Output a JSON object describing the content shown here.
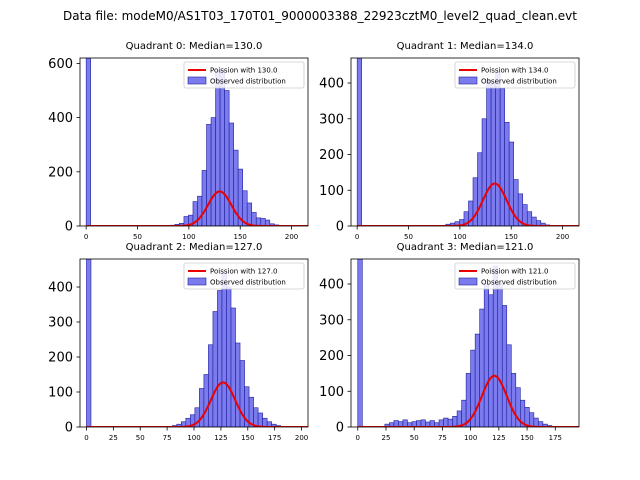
{
  "suptitle": "Data file: modeM0/AS1T03_170T01_9000003388_22923cztM0_level2_quad_clean.evt",
  "colors": {
    "hist_fill": "#7b7bed",
    "hist_edge": "#1f1f9e",
    "poisson": "#ee0000"
  },
  "chart_data": [
    {
      "type": "bar",
      "title": "Quadrant 0: Median=130.0",
      "legend": [
        "Poission with 130.0",
        "Observed distribution"
      ],
      "legend_position": "top-right",
      "xlim": [
        -6,
        216
      ],
      "ylim": [
        0,
        620
      ],
      "xticks": [
        0,
        50,
        100,
        150,
        200
      ],
      "yticks": [
        0,
        200,
        400,
        600
      ],
      "bin_width": 4.4,
      "bins": [
        {
          "x": 0,
          "h": 620
        },
        {
          "x": 82,
          "h": 3
        },
        {
          "x": 86.4,
          "h": 6
        },
        {
          "x": 90.8,
          "h": 10
        },
        {
          "x": 95.2,
          "h": 35
        },
        {
          "x": 99.6,
          "h": 40
        },
        {
          "x": 104,
          "h": 90
        },
        {
          "x": 108.4,
          "h": 110
        },
        {
          "x": 112.8,
          "h": 205
        },
        {
          "x": 117.2,
          "h": 375
        },
        {
          "x": 121.6,
          "h": 400
        },
        {
          "x": 126,
          "h": 570
        },
        {
          "x": 130.4,
          "h": 575
        },
        {
          "x": 134.8,
          "h": 500
        },
        {
          "x": 139.2,
          "h": 380
        },
        {
          "x": 143.6,
          "h": 280
        },
        {
          "x": 148,
          "h": 210
        },
        {
          "x": 152.4,
          "h": 130
        },
        {
          "x": 156.8,
          "h": 85
        },
        {
          "x": 161.2,
          "h": 50
        },
        {
          "x": 165.6,
          "h": 30
        },
        {
          "x": 170,
          "h": 28
        },
        {
          "x": 174.4,
          "h": 22
        },
        {
          "x": 178.8,
          "h": 8
        },
        {
          "x": 183.2,
          "h": 4
        }
      ],
      "poisson_mean": 130.0,
      "poisson_scale": 3650
    },
    {
      "type": "bar",
      "title": "Quadrant 1: Median=134.0",
      "legend": [
        "Poission with 134.0",
        "Observed distribution"
      ],
      "legend_position": "top-right",
      "xlim": [
        -6,
        216
      ],
      "ylim": [
        0,
        470
      ],
      "xticks": [
        0,
        50,
        100,
        150,
        200
      ],
      "yticks": [
        0,
        100,
        200,
        300,
        400
      ],
      "bin_width": 4.4,
      "bins": [
        {
          "x": 0,
          "h": 470
        },
        {
          "x": 82,
          "h": 2
        },
        {
          "x": 86.4,
          "h": 5
        },
        {
          "x": 90.8,
          "h": 8
        },
        {
          "x": 95.2,
          "h": 12
        },
        {
          "x": 99.6,
          "h": 18
        },
        {
          "x": 104,
          "h": 40
        },
        {
          "x": 108.4,
          "h": 70
        },
        {
          "x": 112.8,
          "h": 135
        },
        {
          "x": 117.2,
          "h": 205
        },
        {
          "x": 121.6,
          "h": 300
        },
        {
          "x": 126,
          "h": 410
        },
        {
          "x": 130.4,
          "h": 400
        },
        {
          "x": 134.8,
          "h": 430
        },
        {
          "x": 139.2,
          "h": 385
        },
        {
          "x": 143.6,
          "h": 290
        },
        {
          "x": 148,
          "h": 235
        },
        {
          "x": 152.4,
          "h": 130
        },
        {
          "x": 156.8,
          "h": 90
        },
        {
          "x": 161.2,
          "h": 60
        },
        {
          "x": 165.6,
          "h": 40
        },
        {
          "x": 170,
          "h": 25
        },
        {
          "x": 174.4,
          "h": 15
        },
        {
          "x": 178.8,
          "h": 8
        },
        {
          "x": 183.2,
          "h": 3
        }
      ],
      "poisson_mean": 134.0,
      "poisson_scale": 3450
    },
    {
      "type": "bar",
      "title": "Quadrant 2: Median=127.0",
      "legend": [
        "Poission with 127.0",
        "Observed distribution"
      ],
      "legend_position": "top-right",
      "xlim": [
        -6,
        206
      ],
      "ylim": [
        0,
        480
      ],
      "xticks": [
        0,
        25,
        50,
        75,
        100,
        125,
        150,
        175,
        200
      ],
      "yticks": [
        0,
        100,
        200,
        300,
        400
      ],
      "bin_width": 4.2,
      "bins": [
        {
          "x": 0,
          "h": 480
        },
        {
          "x": 79.8,
          "h": 4
        },
        {
          "x": 84,
          "h": 8
        },
        {
          "x": 88.2,
          "h": 15
        },
        {
          "x": 92.4,
          "h": 25
        },
        {
          "x": 96.6,
          "h": 35
        },
        {
          "x": 100.8,
          "h": 55
        },
        {
          "x": 105,
          "h": 110
        },
        {
          "x": 109.2,
          "h": 150
        },
        {
          "x": 113.4,
          "h": 235
        },
        {
          "x": 117.6,
          "h": 330
        },
        {
          "x": 121.8,
          "h": 390
        },
        {
          "x": 126,
          "h": 440
        },
        {
          "x": 130.2,
          "h": 400
        },
        {
          "x": 134.4,
          "h": 340
        },
        {
          "x": 138.6,
          "h": 240
        },
        {
          "x": 142.8,
          "h": 190
        },
        {
          "x": 147,
          "h": 115
        },
        {
          "x": 151.2,
          "h": 85
        },
        {
          "x": 155.4,
          "h": 55
        },
        {
          "x": 159.6,
          "h": 40
        },
        {
          "x": 163.8,
          "h": 25
        },
        {
          "x": 168,
          "h": 15
        },
        {
          "x": 172.2,
          "h": 8
        },
        {
          "x": 176.4,
          "h": 4
        }
      ],
      "poisson_mean": 127.0,
      "poisson_scale": 3600
    },
    {
      "type": "bar",
      "title": "Quadrant 3: Median=121.0",
      "legend": [
        "Poission with 121.0",
        "Observed distribution"
      ],
      "legend_position": "top-right",
      "xlim": [
        -6,
        196
      ],
      "ylim": [
        0,
        470
      ],
      "xticks": [
        0,
        25,
        50,
        75,
        100,
        125,
        150,
        175
      ],
      "yticks": [
        0,
        100,
        200,
        300,
        400
      ],
      "bin_width": 4.0,
      "bins": [
        {
          "x": 0,
          "h": 470
        },
        {
          "x": 24,
          "h": 8
        },
        {
          "x": 28,
          "h": 12
        },
        {
          "x": 32,
          "h": 18
        },
        {
          "x": 36,
          "h": 15
        },
        {
          "x": 40,
          "h": 20
        },
        {
          "x": 44,
          "h": 12
        },
        {
          "x": 48,
          "h": 15
        },
        {
          "x": 52,
          "h": 18
        },
        {
          "x": 56,
          "h": 20
        },
        {
          "x": 60,
          "h": 14
        },
        {
          "x": 64,
          "h": 18
        },
        {
          "x": 68,
          "h": 12
        },
        {
          "x": 72,
          "h": 20
        },
        {
          "x": 76,
          "h": 25
        },
        {
          "x": 80,
          "h": 22
        },
        {
          "x": 84,
          "h": 30
        },
        {
          "x": 88,
          "h": 45
        },
        {
          "x": 92,
          "h": 75
        },
        {
          "x": 96,
          "h": 150
        },
        {
          "x": 100,
          "h": 215
        },
        {
          "x": 104,
          "h": 260
        },
        {
          "x": 108,
          "h": 330
        },
        {
          "x": 112,
          "h": 400
        },
        {
          "x": 116,
          "h": 370
        },
        {
          "x": 120,
          "h": 450
        },
        {
          "x": 124,
          "h": 400
        },
        {
          "x": 128,
          "h": 340
        },
        {
          "x": 132,
          "h": 230
        },
        {
          "x": 136,
          "h": 150
        },
        {
          "x": 140,
          "h": 110
        },
        {
          "x": 144,
          "h": 75
        },
        {
          "x": 148,
          "h": 55
        },
        {
          "x": 152,
          "h": 40
        },
        {
          "x": 156,
          "h": 25
        },
        {
          "x": 160,
          "h": 15
        },
        {
          "x": 164,
          "h": 8
        },
        {
          "x": 168,
          "h": 4
        }
      ],
      "poisson_mean": 121.0,
      "poisson_scale": 3950
    }
  ]
}
